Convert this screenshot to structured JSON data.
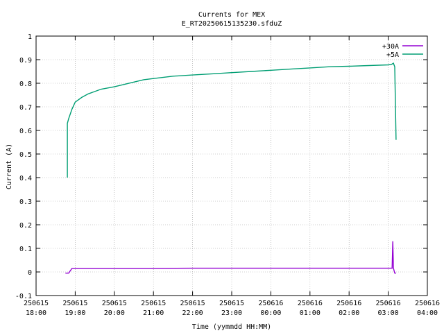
{
  "chart_data": {
    "type": "line",
    "title": "Currents for MEX",
    "subtitle": "E_RT20250615135230.sfduZ",
    "xlabel": "Time (yymmdd HH:MM)",
    "ylabel": "Current (A)",
    "xlim": [
      "250615 18:00",
      "250616 04:00"
    ],
    "ylim": [
      -0.1,
      1
    ],
    "grid": true,
    "legend_position": "top-right",
    "x_ticks": [
      {
        "date": "250615",
        "time": "18:00"
      },
      {
        "date": "250615",
        "time": "19:00"
      },
      {
        "date": "250615",
        "time": "20:00"
      },
      {
        "date": "250615",
        "time": "21:00"
      },
      {
        "date": "250615",
        "time": "22:00"
      },
      {
        "date": "250615",
        "time": "23:00"
      },
      {
        "date": "250616",
        "time": "00:00"
      },
      {
        "date": "250616",
        "time": "01:00"
      },
      {
        "date": "250616",
        "time": "02:00"
      },
      {
        "date": "250616",
        "time": "03:00"
      },
      {
        "date": "250616",
        "time": "04:00"
      }
    ],
    "y_ticks": [
      "-0.1",
      "0",
      "0.1",
      "0.2",
      "0.3",
      "0.4",
      "0.5",
      "0.6",
      "0.7",
      "0.8",
      "0.9",
      "1"
    ],
    "series": [
      {
        "name": "+30A",
        "color": "#9400d3",
        "x": [
          "250615 18:45",
          "250615 18:50",
          "250615 18:55",
          "250615 19:00",
          "250615 20:00",
          "250615 21:00",
          "250615 22:00",
          "250615 23:00",
          "250616 00:00",
          "250616 01:00",
          "250616 02:00",
          "250616 03:00",
          "250616 03:06",
          "250616 03:07",
          "250616 03:08",
          "250616 03:10",
          "250616 03:12"
        ],
        "y": [
          -0.005,
          -0.005,
          0.015,
          0.015,
          0.015,
          0.015,
          0.016,
          0.016,
          0.016,
          0.016,
          0.016,
          0.016,
          0.016,
          0.13,
          0.016,
          -0.005,
          -0.005
        ]
      },
      {
        "name": "+5A",
        "color": "#009e73",
        "x": [
          "250615 18:48",
          "250615 18:48",
          "250615 18:50",
          "250615 18:55",
          "250615 19:00",
          "250615 19:10",
          "250615 19:20",
          "250615 19:30",
          "250615 19:40",
          "250615 19:50",
          "250615 20:00",
          "250615 20:15",
          "250615 20:30",
          "250615 20:45",
          "250615 21:00",
          "250615 21:30",
          "250615 22:00",
          "250615 22:30",
          "250615 23:00",
          "250615 23:30",
          "250616 00:00",
          "250616 00:30",
          "250616 01:00",
          "250616 01:30",
          "250616 02:00",
          "250616 02:30",
          "250616 03:00",
          "250616 03:05",
          "250616 03:08",
          "250616 03:10",
          "250616 03:12"
        ],
        "y": [
          0.4,
          0.63,
          0.65,
          0.69,
          0.72,
          0.74,
          0.755,
          0.765,
          0.775,
          0.78,
          0.785,
          0.795,
          0.805,
          0.815,
          0.82,
          0.83,
          0.835,
          0.84,
          0.845,
          0.85,
          0.855,
          0.86,
          0.865,
          0.87,
          0.872,
          0.875,
          0.878,
          0.88,
          0.885,
          0.87,
          0.56
        ]
      }
    ]
  }
}
